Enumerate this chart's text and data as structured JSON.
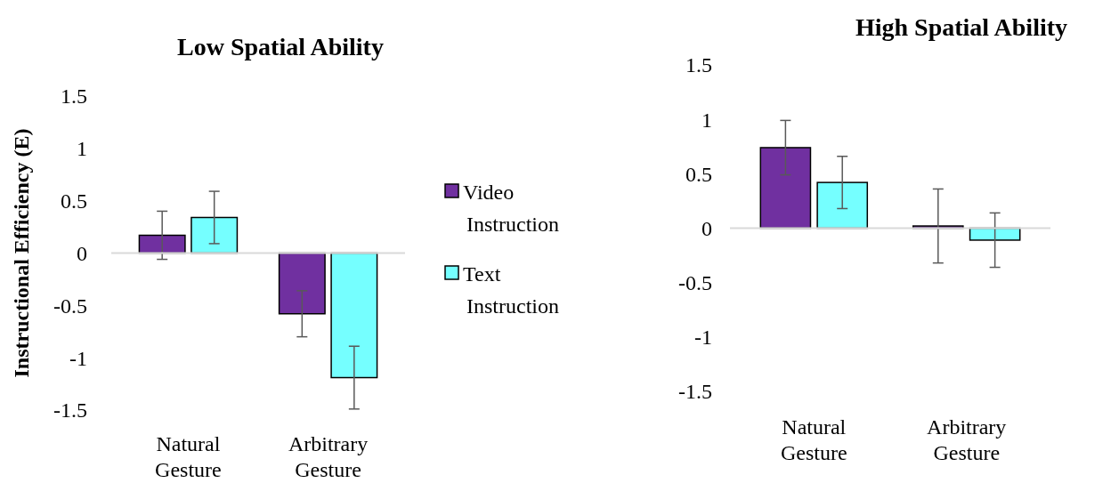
{
  "chart_data": [
    {
      "type": "bar",
      "title": "Low Spatial Ability",
      "ylabel": "Instructional Efficiency (E)",
      "categories": [
        "Natural Gesture",
        "Arbitrary Gesture"
      ],
      "series": [
        {
          "name": "Video Instruction",
          "color": "#7030a0",
          "values": [
            0.17,
            -0.58
          ],
          "errors": [
            0.23,
            0.22
          ]
        },
        {
          "name": "Text Instruction",
          "color": "#75ffff",
          "values": [
            0.34,
            -1.19
          ],
          "errors": [
            0.25,
            0.3
          ]
        }
      ],
      "ylim": [
        -1.5,
        1.5
      ],
      "yticks": [
        -1.5,
        -1,
        -0.5,
        0,
        0.5,
        1,
        1.5
      ],
      "grid": false,
      "legend": "right",
      "ref_lines": [
        {
          "axis": "y",
          "value": 0,
          "color": "#d9d9d9"
        }
      ]
    },
    {
      "type": "bar",
      "title": "High Spatial Ability",
      "categories": [
        "Natural Gesture",
        "Arbitrary Gesture"
      ],
      "series": [
        {
          "color": "#7030a0",
          "values": [
            0.74,
            0.02
          ],
          "errors": [
            0.25,
            0.34
          ]
        },
        {
          "color": "#75ffff",
          "values": [
            0.42,
            -0.11
          ],
          "errors": [
            0.24,
            0.25
          ]
        }
      ],
      "ylim": [
        -1.5,
        1.5
      ],
      "yticks": [
        -1.5,
        -1,
        -0.5,
        0,
        0.5,
        1,
        1.5
      ],
      "grid": false,
      "legend": false,
      "ref_lines": [
        {
          "axis": "y",
          "value": 0,
          "color": "#d9d9d9"
        }
      ]
    }
  ]
}
